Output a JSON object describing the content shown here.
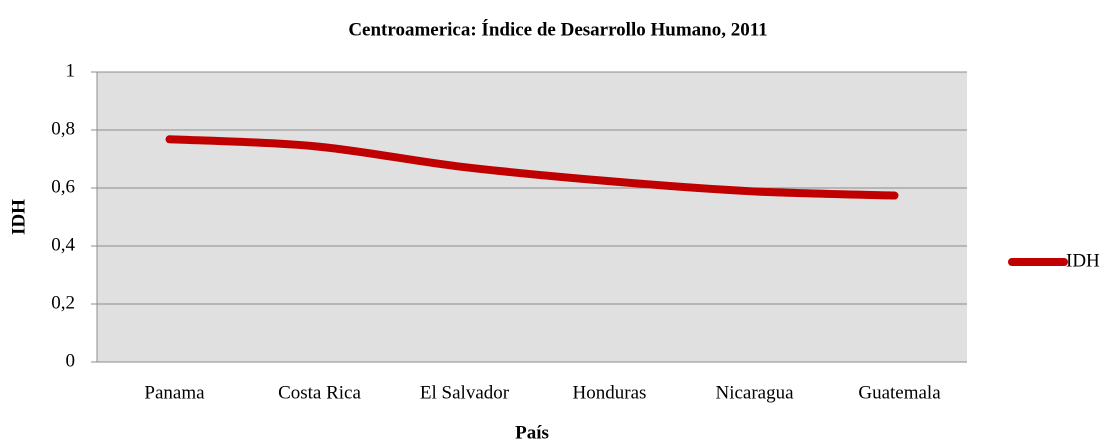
{
  "chart_data": {
    "type": "line",
    "title": "Centroamerica: Índice de Desarrollo Humano, 2011",
    "x_label": "País",
    "y_label": "IDH",
    "categories": [
      "Panama",
      "Costa Rica",
      "El Salvador",
      "Honduras",
      "Nicaragua",
      "Guatemala"
    ],
    "series": [
      {
        "name": "IDH",
        "color": "#c00000",
        "values": [
          0.768,
          0.744,
          0.674,
          0.625,
          0.589,
          0.574
        ]
      }
    ],
    "ylim": [
      0,
      1
    ],
    "yticks": [
      0,
      {
        "value": 0.2,
        "label": "0,2"
      },
      {
        "value": 0.4,
        "label": "0,4"
      },
      {
        "value": 0.6,
        "label": "0,6"
      },
      {
        "value": 0.8,
        "label": "0,8"
      },
      1
    ],
    "grid": true,
    "smooth": true,
    "legend": "right"
  }
}
